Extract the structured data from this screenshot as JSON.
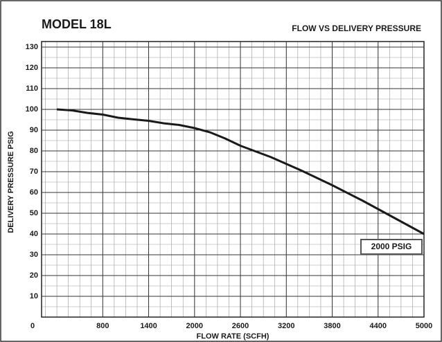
{
  "chart_data": {
    "type": "line",
    "title": "MODEL 18L",
    "subtitle": "FLOW VS DELIVERY PRESSURE",
    "x_label": "FLOW RATE (SCFH)",
    "y_label": "DELIVERY PRESSURE PSIG",
    "annotation": "2000 PSIG",
    "x": [
      200,
      400,
      600,
      800,
      1000,
      1200,
      1400,
      1600,
      1800,
      2000,
      2200,
      2400,
      2600,
      3000,
      3400,
      3800,
      4200,
      4600,
      5000
    ],
    "series": [
      {
        "name": "2000 PSIG",
        "color": "#1a1a1a",
        "values": [
          100,
          99.5,
          98.3,
          97.5,
          96,
          95.2,
          94.5,
          93.3,
          92.5,
          91,
          89,
          86,
          82.5,
          77,
          70.5,
          63.5,
          56,
          48,
          40
        ]
      }
    ],
    "xlim": [
      0,
      5000
    ],
    "xticks": [
      0,
      800,
      1400,
      2000,
      2600,
      3200,
      3800,
      4400,
      5000
    ],
    "ylim": [
      0,
      130
    ],
    "yticks": [
      10,
      20,
      30,
      40,
      50,
      60,
      70,
      80,
      90,
      100,
      110,
      120,
      130
    ],
    "grid": true
  }
}
